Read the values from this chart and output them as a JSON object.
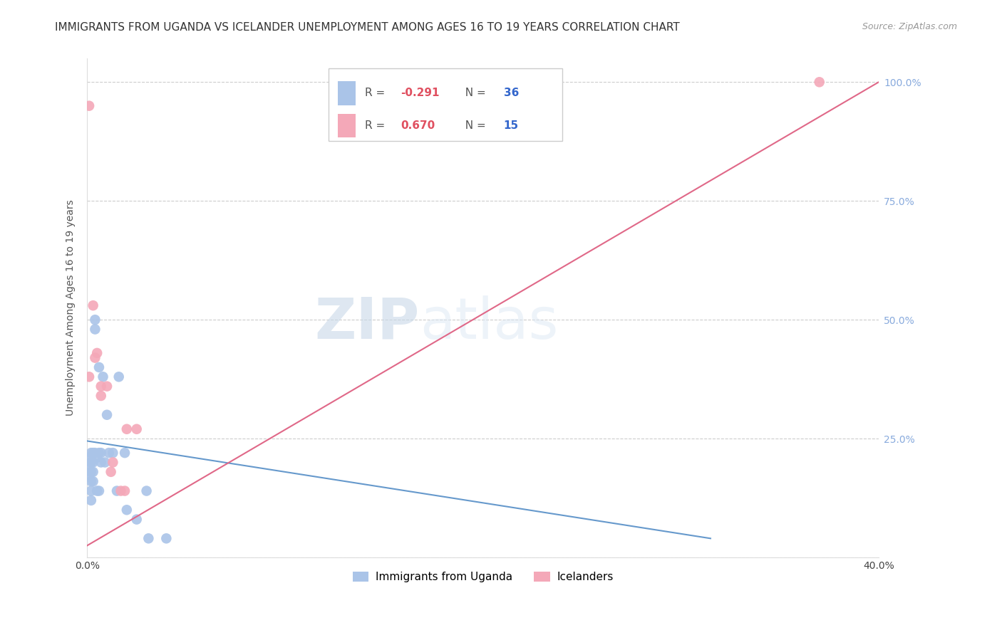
{
  "title": "IMMIGRANTS FROM UGANDA VS ICELANDER UNEMPLOYMENT AMONG AGES 16 TO 19 YEARS CORRELATION CHART",
  "source": "Source: ZipAtlas.com",
  "ylabel": "Unemployment Among Ages 16 to 19 years",
  "xlim": [
    0.0,
    0.4
  ],
  "ylim": [
    0.0,
    1.05
  ],
  "xticks": [
    0.0,
    0.1,
    0.2,
    0.3,
    0.4
  ],
  "xticklabels": [
    "0.0%",
    "",
    "",
    "",
    "40.0%"
  ],
  "yticks": [
    0.0,
    0.25,
    0.5,
    0.75,
    1.0
  ],
  "ylabels_left": [
    "",
    "",
    "",
    "",
    ""
  ],
  "ylabels_right": [
    "",
    "25.0%",
    "50.0%",
    "75.0%",
    "100.0%"
  ],
  "R_blue": -0.291,
  "N_blue": 36,
  "R_pink": 0.67,
  "N_pink": 15,
  "blue_color": "#aac4e8",
  "pink_color": "#f4a8b8",
  "blue_line_color": "#6699cc",
  "pink_line_color": "#e06888",
  "watermark_zip": "ZIP",
  "watermark_atlas": "atlas",
  "legend_label_blue": "Immigrants from Uganda",
  "legend_label_pink": "Icelanders",
  "blue_dots_x": [
    0.001,
    0.001,
    0.001,
    0.002,
    0.002,
    0.002,
    0.002,
    0.002,
    0.002,
    0.003,
    0.003,
    0.003,
    0.003,
    0.004,
    0.004,
    0.004,
    0.005,
    0.005,
    0.006,
    0.006,
    0.007,
    0.007,
    0.008,
    0.009,
    0.01,
    0.011,
    0.013,
    0.015,
    0.016,
    0.019,
    0.02,
    0.025,
    0.03,
    0.031,
    0.04,
    0.006
  ],
  "blue_dots_y": [
    0.21,
    0.19,
    0.17,
    0.22,
    0.2,
    0.18,
    0.16,
    0.14,
    0.12,
    0.22,
    0.2,
    0.18,
    0.16,
    0.5,
    0.48,
    0.22,
    0.21,
    0.14,
    0.4,
    0.22,
    0.22,
    0.2,
    0.38,
    0.2,
    0.3,
    0.22,
    0.22,
    0.14,
    0.38,
    0.22,
    0.1,
    0.08,
    0.14,
    0.04,
    0.04,
    0.14
  ],
  "pink_dots_x": [
    0.001,
    0.003,
    0.005,
    0.007,
    0.01,
    0.013,
    0.017,
    0.02,
    0.37,
    0.004,
    0.007,
    0.012,
    0.019,
    0.025,
    0.001
  ],
  "pink_dots_y": [
    0.95,
    0.53,
    0.43,
    0.36,
    0.36,
    0.2,
    0.14,
    0.27,
    1.0,
    0.42,
    0.34,
    0.18,
    0.14,
    0.27,
    0.38
  ],
  "blue_line_x": [
    0.0,
    0.315
  ],
  "blue_line_y": [
    0.245,
    0.04
  ],
  "pink_line_x": [
    0.0,
    0.4
  ],
  "pink_line_y": [
    0.025,
    1.0
  ],
  "grid_color": "#cccccc",
  "background_color": "#ffffff",
  "title_fontsize": 11,
  "axis_label_fontsize": 10,
  "tick_fontsize": 10,
  "right_tick_color": "#88aadd"
}
